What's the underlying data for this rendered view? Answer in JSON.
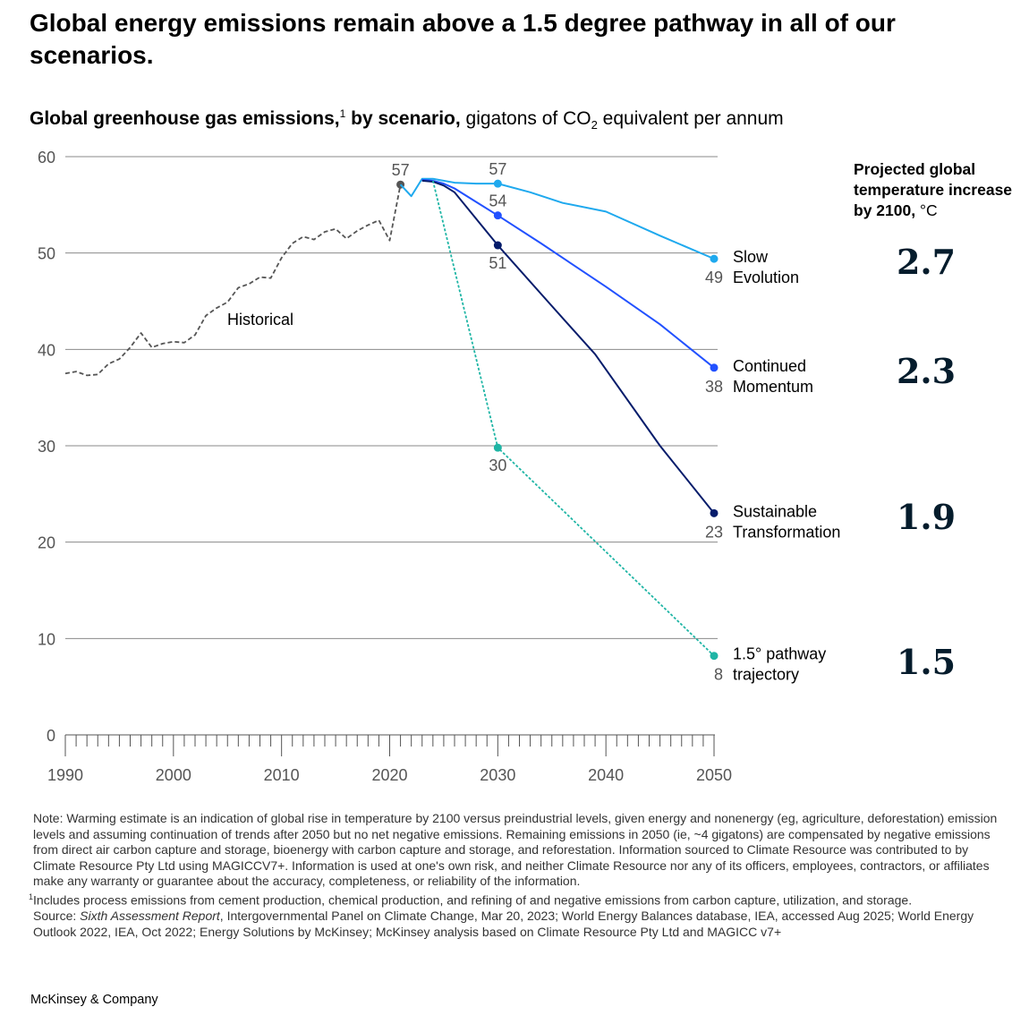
{
  "title": "Global energy emissions remain above a 1.5 degree pathway in all of our scenarios.",
  "subtitle": {
    "bold": "Global greenhouse gas emissions,",
    "footnote_mark": "1",
    "bold2": " by scenario,",
    "rest_pre": " gigatons of CO",
    "rest_sub": "2",
    "rest_post": " equivalent per annum"
  },
  "temperature_panel": {
    "heading": "Projected global temperature increase by 2100,",
    "unit": "°C",
    "values": [
      "2.7",
      "2.3",
      "1.9",
      "1.5"
    ]
  },
  "chart_data": {
    "type": "line",
    "xlim": [
      1990,
      2050
    ],
    "ylim": [
      0,
      60
    ],
    "x_ticks": [
      "1990",
      "2000",
      "2010",
      "2020",
      "2030",
      "2040",
      "2050"
    ],
    "y_ticks": [
      "0",
      "10",
      "20",
      "30",
      "40",
      "50",
      "60"
    ],
    "grid": true,
    "series": [
      {
        "name": "Historical",
        "color": "#555555",
        "dashed": true,
        "x": [
          1990,
          1991,
          1992,
          1993,
          1994,
          1995,
          1996,
          1997,
          1998,
          1999,
          2000,
          2001,
          2002,
          2003,
          2004,
          2005,
          2006,
          2007,
          2008,
          2009,
          2010,
          2011,
          2012,
          2013,
          2014,
          2015,
          2016,
          2017,
          2018,
          2019,
          2020,
          2021
        ],
        "y": [
          37.5,
          37.7,
          37.3,
          37.4,
          38.5,
          39.0,
          40.2,
          41.7,
          40.2,
          40.6,
          40.8,
          40.7,
          41.5,
          43.5,
          44.3,
          44.9,
          46.4,
          46.8,
          47.5,
          47.4,
          49.5,
          51.0,
          51.7,
          51.4,
          52.2,
          52.5,
          51.5,
          52.3,
          52.9,
          53.4,
          51.3,
          57.1
        ],
        "labels": [
          {
            "x": 2021,
            "y": 57.1,
            "text": "57",
            "pos": "above"
          }
        ]
      },
      {
        "name": "Slow Evolution",
        "name_lines": [
          "Slow",
          "Evolution"
        ],
        "color": "#1FA9EE",
        "dashed": false,
        "x": [
          2021,
          2022,
          2023,
          2024,
          2026,
          2028,
          2030,
          2033,
          2036,
          2040,
          2045,
          2050
        ],
        "y": [
          57.1,
          55.9,
          57.7,
          57.7,
          57.3,
          57.2,
          57.2,
          56.3,
          55.2,
          54.3,
          51.8,
          49.4
        ],
        "labels": [
          {
            "x": 2030,
            "y": 57.2,
            "text": "57",
            "pos": "above"
          },
          {
            "x": 2050,
            "y": 49.4,
            "text": "49",
            "pos": "end"
          }
        ]
      },
      {
        "name": "Continued Momentum",
        "name_lines": [
          "Continued",
          "Momentum"
        ],
        "color": "#2251FF",
        "dashed": false,
        "x": [
          2023,
          2024,
          2025,
          2026,
          2028,
          2030,
          2034,
          2040,
          2045,
          2050
        ],
        "y": [
          57.6,
          57.5,
          57.2,
          56.7,
          55.3,
          53.9,
          51.0,
          46.5,
          42.6,
          38.1
        ],
        "labels": [
          {
            "x": 2030,
            "y": 53.9,
            "text": "54",
            "pos": "above"
          },
          {
            "x": 2050,
            "y": 38.1,
            "text": "38",
            "pos": "end"
          }
        ]
      },
      {
        "name": "Sustainable Transformation",
        "name_lines": [
          "Sustainable",
          "Transformation"
        ],
        "color": "#051C6B",
        "dashed": false,
        "x": [
          2023,
          2024,
          2025,
          2026,
          2030,
          2035,
          2039,
          2045,
          2050
        ],
        "y": [
          57.5,
          57.4,
          57.0,
          56.3,
          50.8,
          44.5,
          39.5,
          30.0,
          23.0
        ],
        "labels": [
          {
            "x": 2030,
            "y": 50.8,
            "text": "51",
            "pos": "below"
          },
          {
            "x": 2050,
            "y": 23.0,
            "text": "23",
            "pos": "end"
          }
        ]
      },
      {
        "name": "1.5° pathway trajectory",
        "name_lines": [
          "1.5° pathway",
          "trajectory"
        ],
        "color": "#1FB5A5",
        "dashed": true,
        "x": [
          2024,
          2030,
          2050
        ],
        "y": [
          57.5,
          29.8,
          8.2
        ],
        "labels": [
          {
            "x": 2030,
            "y": 29.8,
            "text": "30",
            "pos": "below"
          },
          {
            "x": 2050,
            "y": 8.2,
            "text": "8",
            "pos": "end"
          }
        ]
      }
    ],
    "annotations": [
      {
        "text": "Historical"
      }
    ]
  },
  "notes": {
    "note": "Note: Warming estimate is an indication of global rise in temperature by 2100 versus preindustrial levels, given energy and nonenergy (eg, agriculture, deforestation) emission levels and assuming continuation of trends after 2050 but no net negative emissions. Remaining emissions in 2050 (ie, ~4 gigatons) are compensated by negative emissions from direct air carbon capture and storage, bioenergy with carbon capture and storage, and reforestation. Information sourced to Climate Resource was contributed to by Climate Resource Pty Ltd using MAGICCV7+. Information is used at one's own risk, and neither Climate Resource nor any of its officers, employees, contractors, or affiliates make any warranty or guarantee about the accuracy, completeness, or reliability of the information.",
    "footnote_mark": "1",
    "footnote": "Includes process emissions from cement production, chemical production, and refining of and negative emissions from carbon capture, utilization, and storage.",
    "source_prefix": "Source: ",
    "source_italic": "Sixth Assessment Report",
    "source_rest": ", Intergovernmental Panel on Climate Change, Mar 20, 2023; World Energy Balances database, IEA, accessed Aug 2025; World Energy Outlook 2022, IEA, Oct 2022; Energy Solutions by McKinsey; McKinsey analysis based on Climate Resource Pty Ltd and MAGICC v7+"
  },
  "brand": "McKinsey & Company"
}
